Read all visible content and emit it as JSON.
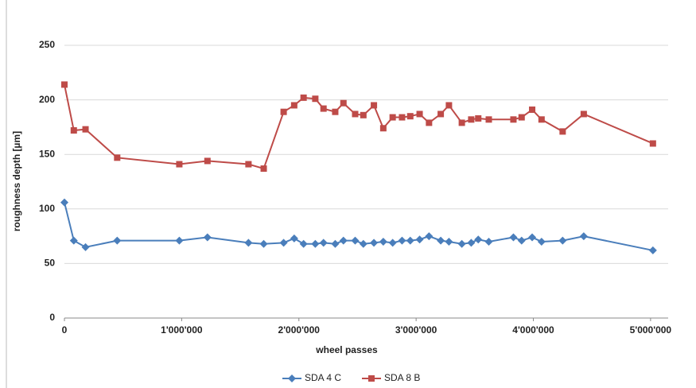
{
  "chart_data": {
    "type": "line",
    "xlabel": "wheel passes",
    "ylabel": "roughness depth [µm]",
    "x": [
      0,
      80000,
      180000,
      450000,
      980000,
      1220000,
      1570000,
      1700000,
      1870000,
      1960000,
      2040000,
      2140000,
      2210000,
      2310000,
      2380000,
      2480000,
      2550000,
      2640000,
      2720000,
      2800000,
      2880000,
      2950000,
      3030000,
      3110000,
      3210000,
      3280000,
      3390000,
      3470000,
      3530000,
      3620000,
      3830000,
      3900000,
      3990000,
      4070000,
      4250000,
      4430000,
      5020000
    ],
    "series": [
      {
        "name": "SDA 4 C",
        "color": "#4a7ebb",
        "marker": "diamond",
        "values": [
          106,
          71,
          65,
          71,
          71,
          74,
          69,
          68,
          69,
          73,
          68,
          68,
          69,
          68,
          71,
          71,
          68,
          69,
          70,
          69,
          71,
          71,
          72,
          75,
          71,
          70,
          68,
          69,
          72,
          70,
          74,
          71,
          74,
          70,
          71,
          75,
          62
        ]
      },
      {
        "name": "SDA 8 B",
        "color": "#be4b48",
        "marker": "square",
        "values": [
          214,
          172,
          173,
          147,
          141,
          144,
          141,
          137,
          189,
          195,
          202,
          201,
          192,
          189,
          197,
          187,
          186,
          195,
          174,
          184,
          184,
          185,
          187,
          179,
          187,
          195,
          179,
          182,
          183,
          182,
          182,
          184,
          191,
          182,
          171,
          187,
          160
        ]
      }
    ],
    "xlim": [
      0,
      5150000
    ],
    "xticks": [
      0,
      {
        "value": 1000000,
        "label": "1'000'000"
      },
      {
        "value": 2000000,
        "label": "2'000'000"
      },
      {
        "value": 3000000,
        "label": "3'000'000"
      },
      {
        "value": 4000000,
        "label": "4'000'000"
      },
      {
        "value": 5000000,
        "label": "5'000'000"
      }
    ],
    "ylim": [
      0,
      250
    ],
    "yticks": [
      0,
      50,
      100,
      150,
      200,
      250
    ],
    "grid": true,
    "legend": "bottom"
  }
}
